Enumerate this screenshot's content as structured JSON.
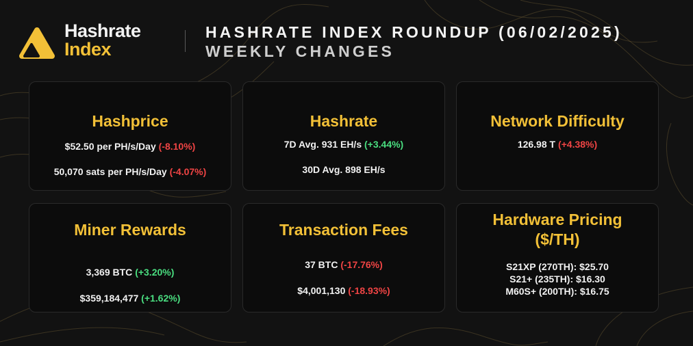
{
  "brand": {
    "logo_line1": "Hashrate",
    "logo_line2": "Index",
    "logo_icon": "hashrate-index-logo-icon",
    "accent": "#f2c037"
  },
  "header": {
    "title": "HASHRATE INDEX ROUNDUP (06/02/2025)",
    "subtitle": "WEEKLY CHANGES"
  },
  "colors": {
    "negative": "#ef4444",
    "positive": "#4ade80",
    "card_bg": "#0c0c0c",
    "page_bg": "#121212"
  },
  "cards": {
    "hashprice": {
      "title": "Hashprice",
      "l1_value": "$52.50 per PH/s/Day",
      "l1_change": "(-8.10%)",
      "l2_value": "50,070 sats per PH/s/Day",
      "l2_change": "(-4.07%)"
    },
    "hashrate": {
      "title": "Hashrate",
      "l1_value": "7D Avg. 931 EH/s",
      "l1_change": "(+3.44%)",
      "l2_value": "30D Avg. 898 EH/s"
    },
    "difficulty": {
      "title": "Network Difficulty",
      "l1_value": "126.98 T",
      "l1_change": "(+4.38%)"
    },
    "rewards": {
      "title": "Miner Rewards",
      "l1_value": "3,369 BTC",
      "l1_change": "(+3.20%)",
      "l2_value": "$359,184,477",
      "l2_change": "(+1.62%)"
    },
    "fees": {
      "title": "Transaction Fees",
      "l1_value": "37 BTC",
      "l1_change": "(-17.76%)",
      "l2_value": "$4,001,130",
      "l2_change": "(-18.93%)"
    },
    "hardware": {
      "title_line1": "Hardware Pricing",
      "title_line2": "($/TH)",
      "items": [
        "S21XP (270TH): $25.70",
        "S21+ (235TH): $16.30",
        "M60S+ (200TH): $16.75"
      ]
    }
  }
}
